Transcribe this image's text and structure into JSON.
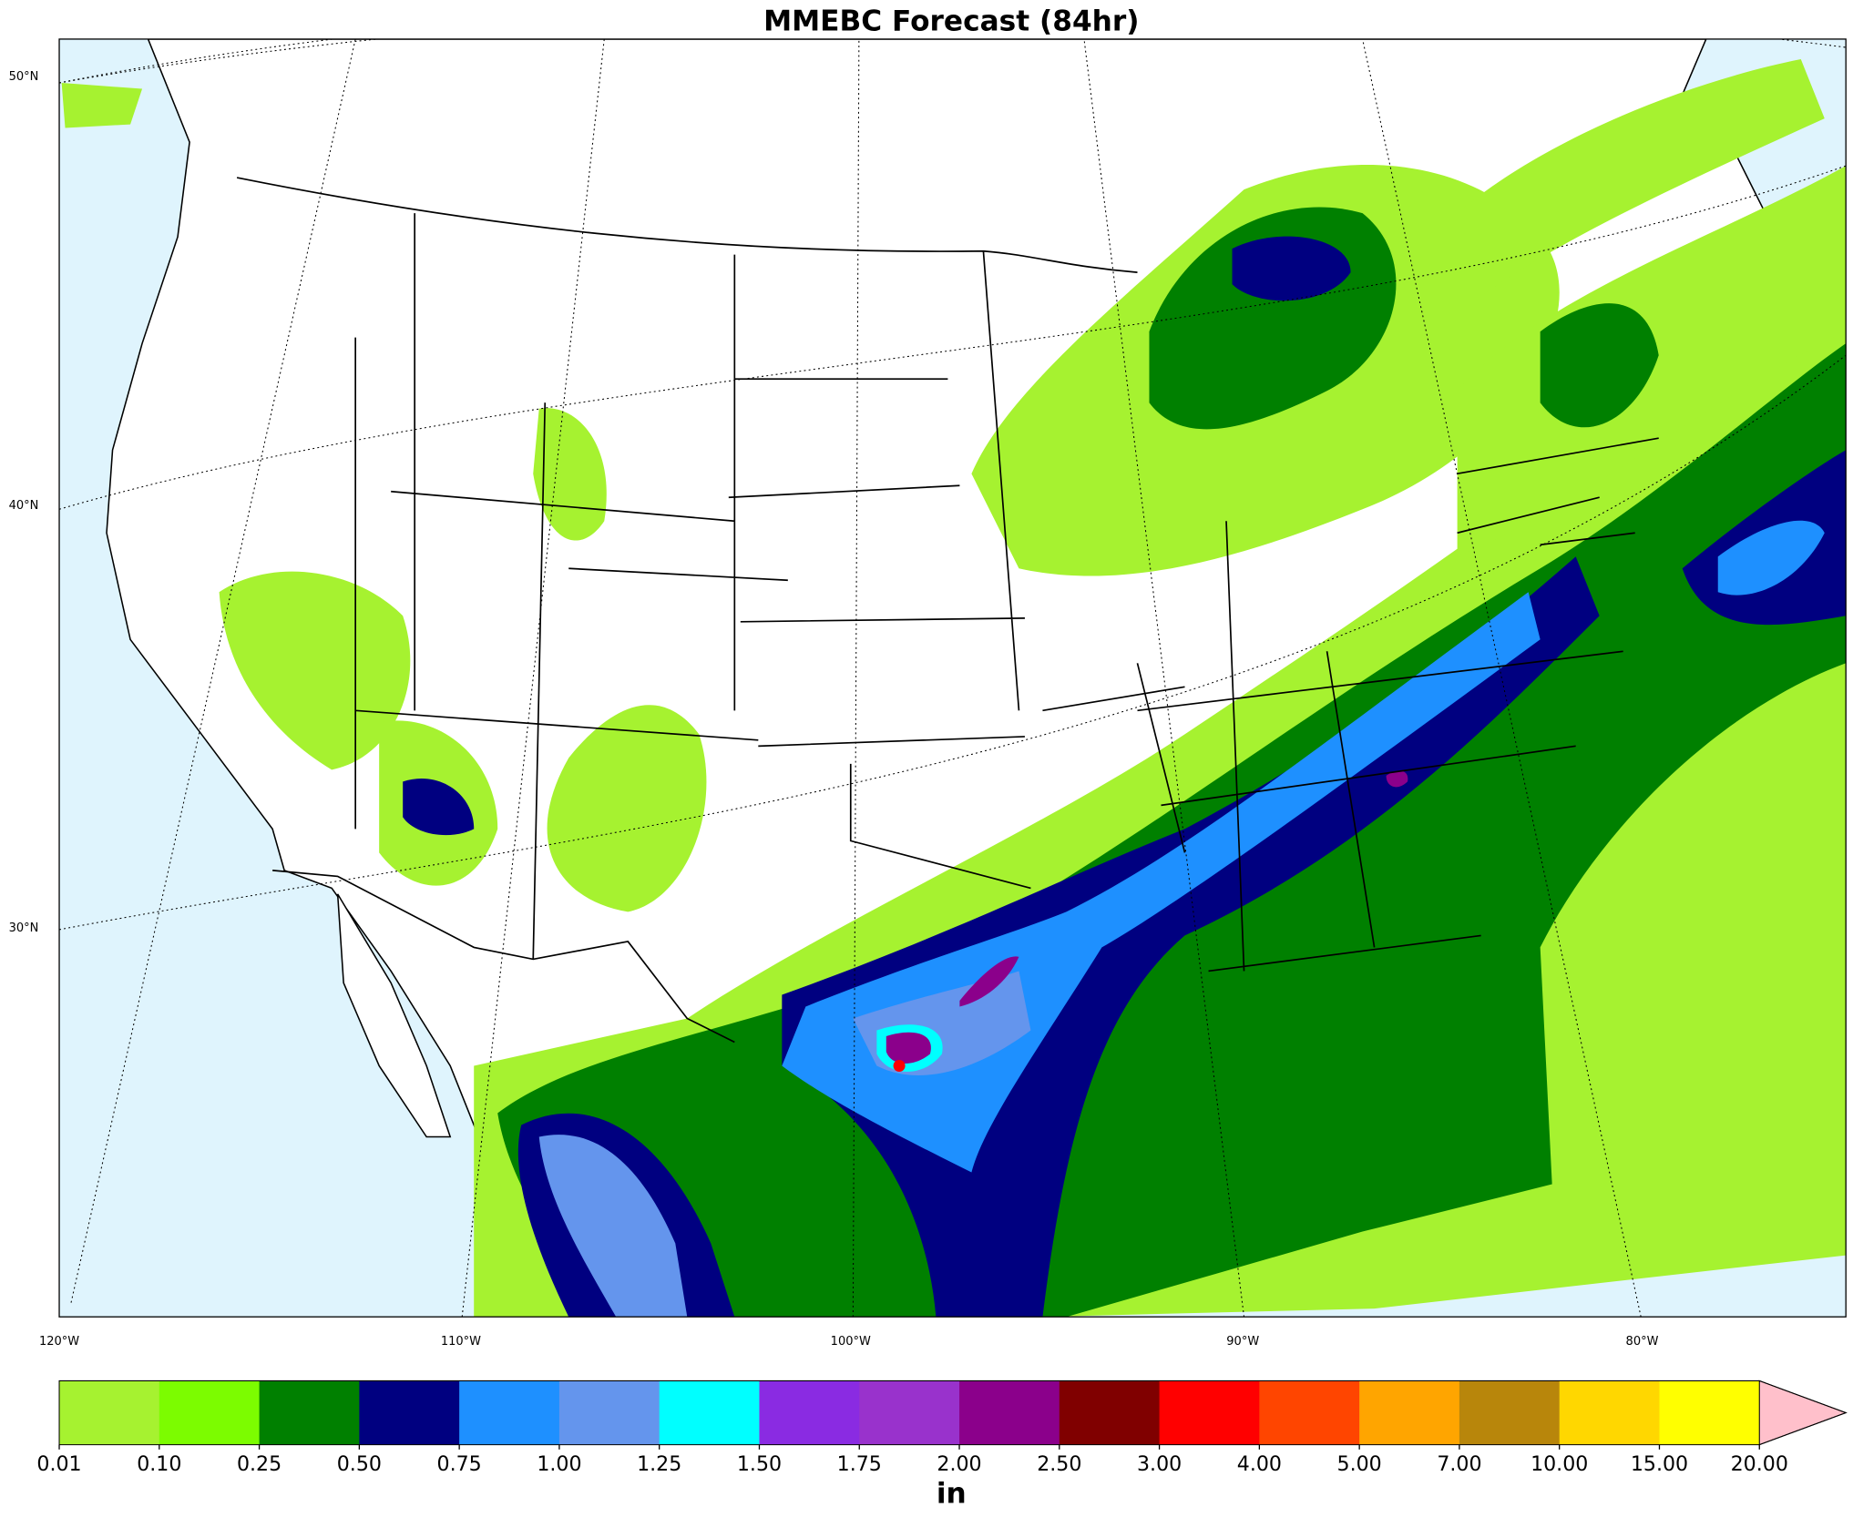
{
  "title": "MMEBC Forecast (84hr)",
  "map": {
    "lat_labels": [
      "50°N",
      "40°N",
      "30°N"
    ],
    "lon_labels": [
      "120°W",
      "110°W",
      "100°W",
      "90°W",
      "80°W"
    ]
  },
  "colorbar": {
    "unit": "in",
    "ticks": [
      {
        "value": 0.01,
        "label": "0.01"
      },
      {
        "value": 0.1,
        "label": "0.10"
      },
      {
        "value": 0.25,
        "label": "0.25"
      },
      {
        "value": 0.5,
        "label": "0.50"
      },
      {
        "value": 0.75,
        "label": "0.75"
      },
      {
        "value": 1,
        "label": "1.00"
      },
      {
        "value": 1.25,
        "label": "1.25"
      },
      {
        "value": 1.5,
        "label": "1.50"
      },
      {
        "value": 1.75,
        "label": "1.75"
      },
      {
        "value": 2,
        "label": "2.00"
      },
      {
        "value": 2.5,
        "label": "2.50"
      },
      {
        "value": 3,
        "label": "3.00"
      },
      {
        "value": 4,
        "label": "4.00"
      },
      {
        "value": 5,
        "label": "5.00"
      },
      {
        "value": 7,
        "label": "7.00"
      },
      {
        "value": 10,
        "label": "10.00"
      },
      {
        "value": 15,
        "label": "15.00"
      },
      {
        "value": 20,
        "label": "20.00"
      }
    ],
    "colors": [
      "#a6f230",
      "#7cfc00",
      "#008000",
      "#000080",
      "#1e90ff",
      "#6495ed",
      "#00ffff",
      "#8a2be2",
      "#9932cc",
      "#8b008b",
      "#800000",
      "#ff0000",
      "#ff4500",
      "#ffa500",
      "#b8860b",
      "#ffd700",
      "#ffff00"
    ],
    "extend_color": "#ffc0cb"
  }
}
